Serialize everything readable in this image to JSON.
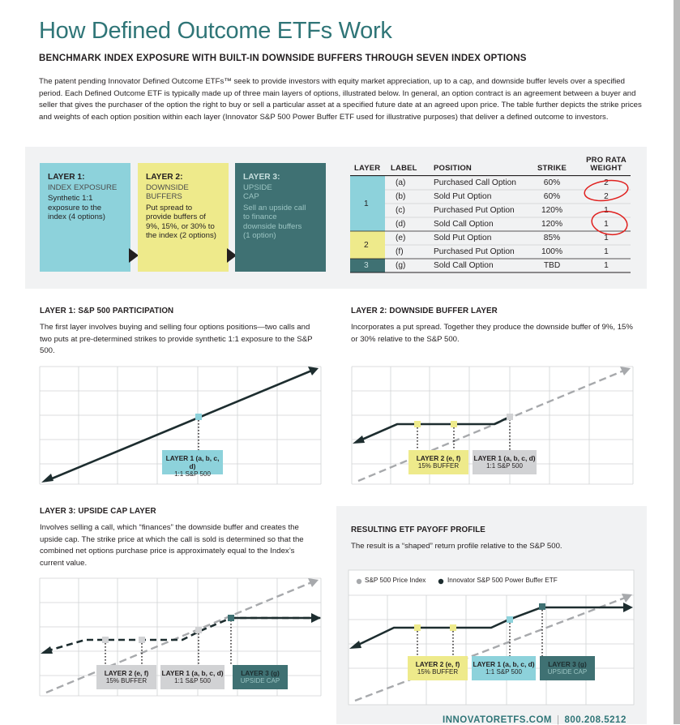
{
  "title": "How Defined Outcome ETFs Work",
  "subtitle": "BENCHMARK INDEX EXPOSURE WITH BUILT-IN DOWNSIDE BUFFERS THROUGH SEVEN INDEX OPTIONS",
  "intro": "The patent pending Innovator Defined Outcome ETFs™ seek to provide investors with equity market appreciation, up to a cap, and downside buffer levels over a specified period. Each Defined Outcome ETF is typically made up of three main layers of options, illustrated below. In general, an option contract is an agreement between a buyer and seller that gives the purchaser of the option the right to buy or sell a particular asset at a specified future date at an agreed upon price. The table further depicts the strike prices and weights of each option position within each layer (Innovator S&P 500 Power Buffer ETF used for illustrative purposes) that deliver a defined outcome to investors.",
  "layers": [
    {
      "title": "LAYER 1:",
      "subtitle": "INDEX EXPOSURE",
      "desc": "Synthetic 1:1 exposure to the index (4 options)"
    },
    {
      "title": "LAYER 2:",
      "subtitle": "DOWNSIDE BUFFERS",
      "desc": "Put spread to provide buffers of 9%, 15%, or 30% to the index (2 options)"
    },
    {
      "title": "LAYER 3:",
      "subtitle": "UPSIDE CAP",
      "desc": "Sell an upside call to finance downside buffers (1 option)"
    }
  ],
  "table": {
    "headers": {
      "layer": "LAYER",
      "label": "LABEL",
      "position": "POSITION",
      "strike": "STRIKE",
      "weight": "PRO RATA WEIGHT"
    },
    "groups": [
      {
        "layer": "1",
        "color": "#8dd2db"
      },
      {
        "layer": "2",
        "color": "#eeea8b"
      },
      {
        "layer": "3",
        "color": "#3f7173"
      }
    ],
    "rows": [
      {
        "label": "(a)",
        "position": "Purchased Call Option",
        "strike": "60%",
        "weight": "2"
      },
      {
        "label": "(b)",
        "position": "Sold Put Option",
        "strike": "60%",
        "weight": "2"
      },
      {
        "label": "(c)",
        "position": "Purchased Put Option",
        "strike": "120%",
        "weight": "1"
      },
      {
        "label": "(d)",
        "position": "Sold Call Option",
        "strike": "120%",
        "weight": "1"
      },
      {
        "label": "(e)",
        "position": "Sold Put Option",
        "strike": "85%",
        "weight": "1"
      },
      {
        "label": "(f)",
        "position": "Purchased Put Option",
        "strike": "100%",
        "weight": "1"
      },
      {
        "label": "(g)",
        "position": "Sold Call Option",
        "strike": "TBD",
        "weight": "1"
      }
    ]
  },
  "sections": {
    "s1": {
      "title": "LAYER 1: S&P 500 PARTICIPATION",
      "text": "The first layer involves buying and selling four options positions—two calls and two puts at pre-determined strikes to provide synthetic 1:1 exposure to the S&P 500."
    },
    "s2": {
      "title": "LAYER 2: DOWNSIDE BUFFER LAYER",
      "text": "Incorporates a put spread. Together they produce the downside buffer of 9%, 15% or 30% relative to the S&P 500."
    },
    "s3": {
      "title": "LAYER 3: UPSIDE CAP LAYER",
      "text": "Involves selling a call, which “finances” the downside buffer and creates the upside cap. The strike price at which the call is sold is determined so that the combined net options purchase price is approximately equal to the Index’s current value."
    },
    "s4": {
      "title": "RESULTING ETF PAYOFF PROFILE",
      "text": "The result is a “shaped” return profile relative to the S&P 500."
    }
  },
  "chart_labels": {
    "layer1": {
      "title": "LAYER 1 (a, b, c, d)",
      "sub": "1:1 S&P 500"
    },
    "layer2": {
      "title": "LAYER 2 (e, f)",
      "sub": "15% BUFFER"
    },
    "layer3": {
      "title": "LAYER 3 (g)",
      "sub": "UPSIDE CAP"
    }
  },
  "legend": {
    "sp500": "S&P 500 Price Index",
    "etf": "Innovator S&P 500 Power Buffer ETF"
  },
  "footer": {
    "website": "INNOVATORETFS.COM",
    "phone": "800.208.5212"
  },
  "colors": {
    "teal_title": "#2f7577",
    "layer1": "#8dd2db",
    "layer2": "#eeea8b",
    "layer3": "#3f7173",
    "grey_box": "#d1d2d4",
    "line_dark": "#1d2d2f",
    "dashed_grey": "#a7a9ac",
    "annotation_red": "#e0201e"
  }
}
